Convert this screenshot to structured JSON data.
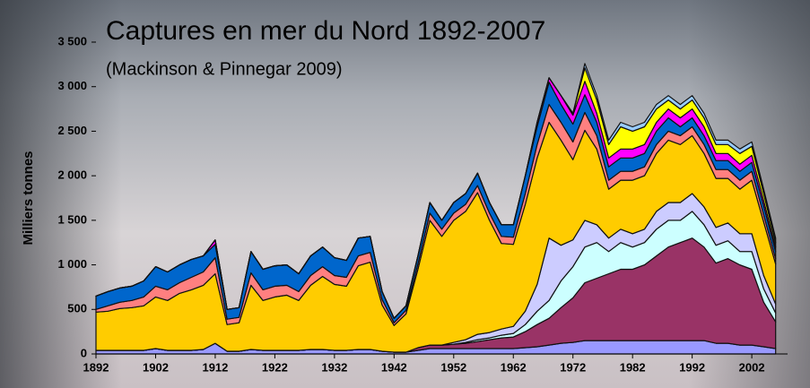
{
  "chart_data": {
    "type": "stacked_area",
    "title": "Captures en mer du Nord 1892-2007",
    "subtitle": "(Mackinson & Pinnegar 2009)",
    "y_label": "Milliers tonnes",
    "xlim": [
      1892,
      2008
    ],
    "xticks": [
      1892,
      1902,
      1912,
      1922,
      1932,
      1942,
      1952,
      1962,
      1972,
      1982,
      1992,
      2002
    ],
    "ylim": [
      0,
      3500
    ],
    "yticks": [
      0,
      500,
      {
        "value": 1000,
        "label": "1 000"
      },
      {
        "value": 1500,
        "label": "1 500"
      },
      {
        "value": 2000,
        "label": "2 000"
      },
      {
        "value": 2500,
        "label": "2 500"
      },
      {
        "value": 3000,
        "label": "3 000"
      },
      {
        "value": 3500,
        "label": "3 500"
      }
    ],
    "x": [
      1892,
      1894,
      1896,
      1898,
      1900,
      1902,
      1904,
      1906,
      1908,
      1910,
      1912,
      1914,
      1916,
      1918,
      1920,
      1922,
      1924,
      1926,
      1928,
      1930,
      1932,
      1934,
      1936,
      1938,
      1940,
      1942,
      1944,
      1946,
      1948,
      1950,
      1952,
      1954,
      1956,
      1958,
      1960,
      1962,
      1964,
      1966,
      1968,
      1970,
      1972,
      1974,
      1976,
      1978,
      1980,
      1982,
      1984,
      1986,
      1988,
      1990,
      1992,
      1994,
      1996,
      1998,
      2000,
      2002,
      2004,
      2006
    ],
    "series": [
      {
        "color": "#9999ff",
        "values": [
          40,
          40,
          40,
          40,
          40,
          60,
          40,
          40,
          40,
          50,
          120,
          30,
          30,
          50,
          40,
          40,
          40,
          40,
          50,
          50,
          40,
          40,
          50,
          50,
          30,
          20,
          20,
          40,
          60,
          60,
          60,
          60,
          60,
          60,
          60,
          60,
          70,
          80,
          100,
          120,
          130,
          150,
          150,
          150,
          150,
          150,
          150,
          150,
          150,
          150,
          150,
          150,
          120,
          120,
          100,
          100,
          80,
          60
        ]
      },
      {
        "color": "#993366",
        "values": [
          0,
          0,
          0,
          0,
          0,
          0,
          0,
          0,
          0,
          0,
          0,
          0,
          0,
          0,
          0,
          0,
          0,
          0,
          0,
          0,
          0,
          0,
          0,
          0,
          0,
          0,
          0,
          30,
          40,
          40,
          50,
          60,
          80,
          100,
          120,
          130,
          180,
          250,
          300,
          400,
          500,
          650,
          700,
          750,
          800,
          800,
          850,
          950,
          1050,
          1100,
          1150,
          1050,
          900,
          950,
          900,
          850,
          500,
          300
        ]
      },
      {
        "color": "#ccffff",
        "values": [
          0,
          0,
          0,
          0,
          0,
          0,
          0,
          0,
          0,
          0,
          0,
          0,
          0,
          0,
          0,
          0,
          0,
          0,
          0,
          0,
          0,
          0,
          0,
          0,
          0,
          0,
          0,
          0,
          0,
          0,
          0,
          10,
          20,
          20,
          30,
          40,
          80,
          150,
          200,
          300,
          350,
          400,
          400,
          250,
          300,
          250,
          250,
          300,
          300,
          250,
          300,
          250,
          200,
          200,
          150,
          200,
          150,
          100
        ]
      },
      {
        "color": "#ccccff",
        "values": [
          0,
          0,
          0,
          0,
          0,
          0,
          0,
          0,
          0,
          0,
          0,
          0,
          0,
          0,
          0,
          0,
          0,
          0,
          0,
          0,
          0,
          0,
          0,
          0,
          0,
          0,
          0,
          0,
          0,
          0,
          20,
          30,
          60,
          60,
          70,
          80,
          150,
          300,
          700,
          400,
          300,
          300,
          200,
          150,
          150,
          150,
          150,
          200,
          200,
          200,
          200,
          200,
          200,
          200,
          200,
          200,
          150,
          100
        ]
      },
      {
        "color": "#ffcc00",
        "values": [
          430,
          440,
          470,
          480,
          500,
          580,
          560,
          640,
          680,
          720,
          780,
          300,
          320,
          720,
          560,
          600,
          620,
          560,
          720,
          820,
          740,
          720,
          940,
          980,
          520,
          300,
          430,
          880,
          1400,
          1220,
          1370,
          1440,
          1590,
          1260,
          960,
          920,
          1200,
          1420,
          1300,
          1180,
          900,
          1010,
          850,
          550,
          550,
          600,
          600,
          650,
          700,
          650,
          650,
          600,
          550,
          500,
          500,
          600,
          600,
          450
        ]
      },
      {
        "color": "#ff8080",
        "values": [
          30,
          60,
          70,
          80,
          100,
          120,
          120,
          120,
          140,
          150,
          180,
          60,
          60,
          140,
          120,
          120,
          110,
          100,
          110,
          110,
          100,
          100,
          110,
          110,
          60,
          30,
          40,
          60,
          80,
          80,
          80,
          80,
          80,
          80,
          80,
          80,
          120,
          150,
          200,
          200,
          200,
          200,
          150,
          100,
          100,
          100,
          100,
          100,
          100,
          100,
          100,
          100,
          100,
          100,
          100,
          100,
          80,
          60
        ]
      },
      {
        "color": "#0066cc",
        "values": [
          150,
          160,
          160,
          160,
          180,
          220,
          200,
          200,
          200,
          180,
          150,
          110,
          110,
          240,
          230,
          230,
          230,
          200,
          220,
          220,
          200,
          190,
          200,
          180,
          90,
          50,
          50,
          90,
          120,
          100,
          120,
          120,
          140,
          120,
          130,
          140,
          200,
          200,
          250,
          200,
          200,
          200,
          150,
          150,
          150,
          150,
          150,
          150,
          150,
          100,
          100,
          100,
          100,
          100,
          100,
          100,
          100,
          80
        ]
      },
      {
        "color": "#ff00ff",
        "values": [
          0,
          0,
          0,
          0,
          0,
          0,
          0,
          0,
          0,
          0,
          50,
          0,
          0,
          0,
          0,
          0,
          0,
          0,
          0,
          0,
          0,
          0,
          0,
          0,
          0,
          0,
          0,
          0,
          0,
          0,
          0,
          0,
          0,
          0,
          0,
          0,
          0,
          50,
          50,
          100,
          100,
          150,
          100,
          100,
          100,
          100,
          100,
          100,
          100,
          100,
          100,
          100,
          80,
          80,
          80,
          80,
          60,
          50
        ]
      },
      {
        "color": "#ffff00",
        "values": [
          0,
          0,
          0,
          0,
          0,
          0,
          0,
          0,
          0,
          0,
          0,
          0,
          0,
          0,
          0,
          0,
          0,
          0,
          0,
          0,
          0,
          0,
          0,
          0,
          0,
          0,
          0,
          0,
          0,
          0,
          0,
          0,
          0,
          0,
          0,
          0,
          0,
          0,
          0,
          0,
          20,
          150,
          150,
          150,
          250,
          200,
          200,
          150,
          100,
          100,
          100,
          100,
          100,
          100,
          120,
          100,
          80,
          50
        ]
      },
      {
        "color": "#99ccff",
        "values": [
          0,
          0,
          0,
          0,
          0,
          0,
          0,
          0,
          0,
          0,
          0,
          0,
          0,
          0,
          0,
          0,
          0,
          0,
          0,
          0,
          0,
          0,
          0,
          0,
          0,
          0,
          0,
          0,
          0,
          0,
          0,
          0,
          0,
          0,
          0,
          0,
          0,
          0,
          0,
          0,
          0,
          50,
          50,
          50,
          50,
          50,
          50,
          50,
          50,
          50,
          50,
          50,
          50,
          50,
          50,
          50,
          50,
          50
        ]
      }
    ]
  }
}
